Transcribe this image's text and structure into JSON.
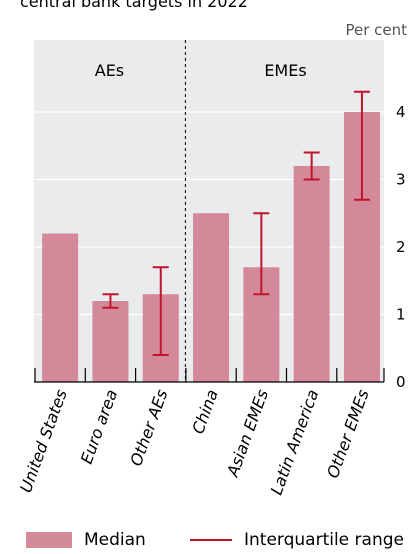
{
  "chart_data": {
    "type": "bar",
    "title": "central bank targets in 2022",
    "unit": "Per cent",
    "groups": [
      {
        "label": "AEs",
        "categories": [
          "United States",
          "Euro area",
          "Other AEs"
        ]
      },
      {
        "label": "EMEs",
        "categories": [
          "China",
          "Asian EMEs",
          "Latin America",
          "Other EMEs"
        ]
      }
    ],
    "categories": [
      "United States",
      "Euro area",
      "Other AEs",
      "China",
      "Asian EMEs",
      "Latin America",
      "Other EMEs"
    ],
    "series": [
      {
        "name": "Median",
        "type": "bar",
        "color": "#d4899b",
        "values": [
          2.2,
          1.2,
          1.3,
          2.5,
          1.7,
          3.2,
          4.0
        ]
      },
      {
        "name": "Interquartile range",
        "type": "errorbar",
        "color": "#c0142a",
        "low": [
          null,
          1.1,
          0.4,
          null,
          1.3,
          3.0,
          2.7
        ],
        "high": [
          null,
          1.3,
          1.7,
          null,
          2.5,
          3.4,
          4.3
        ]
      }
    ],
    "yticks": [
      0,
      1,
      2,
      3,
      4
    ],
    "ylim": [
      0,
      4.4
    ],
    "grid": true,
    "legend": "bottom"
  },
  "legend": {
    "median_label": "Median",
    "iqr_label": "Interquartile range"
  }
}
